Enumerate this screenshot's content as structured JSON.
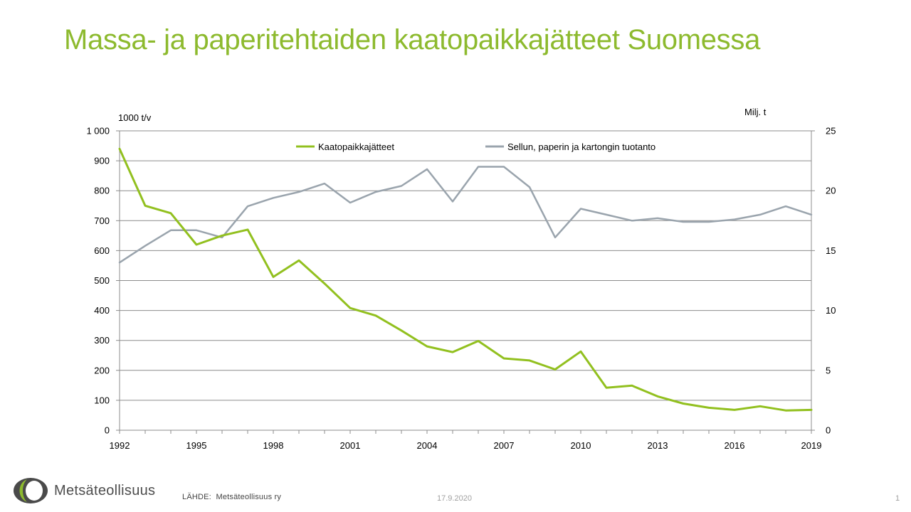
{
  "slide": {
    "title": "Massa- ja paperitehtaiden kaatopaikkajätteet Suomessa",
    "source_label": "LÄHDE:",
    "source_value": "Metsäteollisuus ry",
    "date": "17.9.2020",
    "page_number": "1",
    "logo_text": "Metsäteollisuus"
  },
  "colors": {
    "title": "#8dba2e",
    "waste_series": "#92c01f",
    "production_series": "#9aa4ad",
    "grid": "#8c8c8c"
  },
  "chart_data": {
    "type": "line",
    "y_left_unit": "1000 t/v",
    "y_right_unit": "Milj. t",
    "y_left_range": [
      0,
      1000
    ],
    "y_right_range": [
      0,
      25
    ],
    "y_left_ticks": [
      "0",
      "100",
      "200",
      "300",
      "400",
      "500",
      "600",
      "700",
      "800",
      "900",
      "1 000"
    ],
    "y_right_ticks": [
      "0",
      "5",
      "10",
      "15",
      "20",
      "25"
    ],
    "x_tick_labels": [
      "1992",
      "1995",
      "1998",
      "2001",
      "2004",
      "2007",
      "2010",
      "2013",
      "2016",
      "2019"
    ],
    "x": [
      1992,
      1993,
      1994,
      1995,
      1996,
      1997,
      1998,
      1999,
      2000,
      2001,
      2002,
      2003,
      2004,
      2005,
      2006,
      2007,
      2008,
      2009,
      2010,
      2011,
      2012,
      2013,
      2014,
      2015,
      2016,
      2017,
      2018,
      2019
    ],
    "grid": true,
    "legend_position": "top",
    "series": [
      {
        "name": "Kaatopaikkajätteet",
        "axis": "left",
        "values": [
          940,
          750,
          725,
          620,
          650,
          670,
          512,
          567,
          490,
          408,
          383,
          333,
          280,
          261,
          298,
          240,
          233,
          203,
          263,
          142,
          149,
          113,
          89,
          75,
          68,
          80,
          66,
          68
        ]
      },
      {
        "name": "Sellun, paperin ja kartongin tuotanto",
        "axis": "right",
        "values": [
          14.0,
          15.4,
          16.7,
          16.7,
          16.1,
          18.7,
          19.4,
          19.9,
          20.6,
          19.0,
          19.9,
          20.4,
          21.8,
          19.1,
          22.0,
          22.0,
          20.3,
          16.1,
          18.5,
          18.0,
          17.5,
          17.7,
          17.4,
          17.4,
          17.6,
          18.0,
          18.7,
          18.0
        ]
      }
    ]
  }
}
